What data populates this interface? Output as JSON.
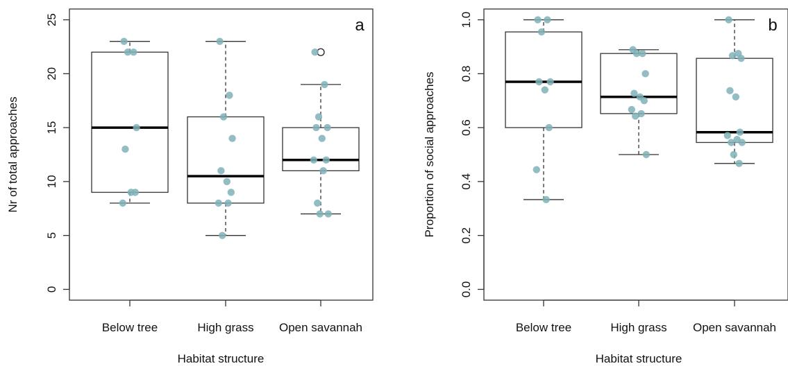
{
  "chart_data": [
    {
      "type": "boxplot",
      "panel_label": "a",
      "xlabel": "Habitat structure",
      "ylabel": "Nr of total approaches",
      "categories": [
        "Below tree",
        "High grass",
        "Open savannah"
      ],
      "ylim": [
        -1,
        26
      ],
      "yticks": [
        0,
        5,
        10,
        15,
        20,
        25
      ],
      "yticklabels": [
        "0",
        "5",
        "10",
        "15",
        "20",
        "25"
      ],
      "grid": false,
      "point_color": "#7fb2b7",
      "boxes": [
        {
          "category": "Below tree",
          "whisker_low": 8,
          "q1": 9,
          "median": 15,
          "q3": 22,
          "whisker_high": 23,
          "outliers": []
        },
        {
          "category": "High grass",
          "whisker_low": 5,
          "q1": 8,
          "median": 10.5,
          "q3": 16,
          "whisker_high": 23,
          "outliers": []
        },
        {
          "category": "Open savannah",
          "whisker_low": 7,
          "q1": 11,
          "median": 12,
          "q3": 15,
          "whisker_high": 19,
          "outliers": [
            22
          ]
        }
      ],
      "points": [
        {
          "category": "Below tree",
          "values": [
            23,
            22,
            22,
            15,
            13,
            9,
            9,
            8
          ]
        },
        {
          "category": "High grass",
          "values": [
            23,
            18,
            16,
            14,
            11,
            10,
            9,
            8,
            8,
            5
          ]
        },
        {
          "category": "Open savannah",
          "values": [
            22,
            19,
            16,
            15,
            15,
            14,
            12,
            12,
            11,
            8,
            7,
            7
          ]
        }
      ]
    },
    {
      "type": "boxplot",
      "panel_label": "b",
      "xlabel": "Habitat structure",
      "ylabel": "Proportion of social approaches",
      "categories": [
        "Below tree",
        "High grass",
        "Open savannah"
      ],
      "ylim": [
        -0.04,
        1.04
      ],
      "yticks": [
        0.0,
        0.2,
        0.4,
        0.6,
        0.8,
        1.0
      ],
      "yticklabels": [
        "0.0",
        "0.2",
        "0.4",
        "0.6",
        "0.8",
        "1.0"
      ],
      "grid": false,
      "point_color": "#7fb2b7",
      "boxes": [
        {
          "category": "Below tree",
          "whisker_low": 0.333,
          "q1": 0.6,
          "median": 0.77,
          "q3": 0.955,
          "whisker_high": 1.0,
          "outliers": []
        },
        {
          "category": "High grass",
          "whisker_low": 0.5,
          "q1": 0.652,
          "median": 0.714,
          "q3": 0.875,
          "whisker_high": 0.889,
          "outliers": []
        },
        {
          "category": "Open savannah",
          "whisker_low": 0.467,
          "q1": 0.545,
          "median": 0.583,
          "q3": 0.857,
          "whisker_high": 1.0,
          "outliers": []
        }
      ],
      "points": [
        {
          "category": "Below tree",
          "values": [
            1.0,
            1.0,
            0.955,
            0.77,
            0.77,
            0.74,
            0.6,
            0.444,
            0.333
          ]
        },
        {
          "category": "High grass",
          "values": [
            0.889,
            0.875,
            0.875,
            0.8,
            0.727,
            0.714,
            0.7,
            0.667,
            0.652,
            0.643,
            0.5
          ]
        },
        {
          "category": "Open savannah",
          "values": [
            1.0,
            0.875,
            0.867,
            0.857,
            0.737,
            0.714,
            0.583,
            0.571,
            0.556,
            0.545,
            0.545,
            0.5,
            0.467
          ]
        }
      ]
    }
  ]
}
